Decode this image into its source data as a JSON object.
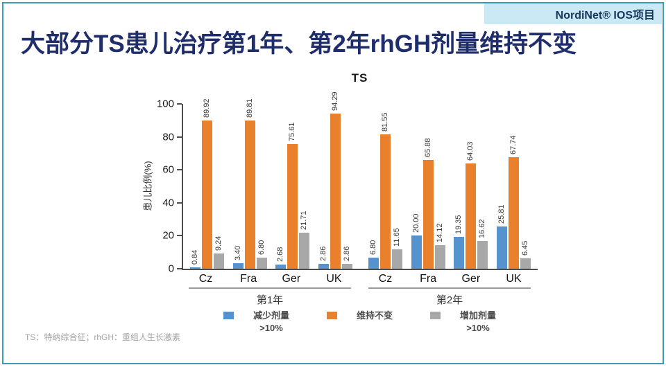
{
  "header": {
    "project": "NordiNet® IOS项目"
  },
  "title": "大部分TS患儿治疗第1年、第2年rhGH剂量维持不变",
  "footnote": "TS：特纳综合征；rhGH：重组人生长激素",
  "colors": {
    "border_teal": "#3d9bb3",
    "header_bg": "#cbe9f5",
    "header_text": "#16365c",
    "title_color": "#1f2e6b"
  },
  "chart_data": {
    "type": "bar",
    "title": "TS",
    "ylabel": "患儿比例(%)",
    "ylim": [
      0,
      100
    ],
    "yticks": [
      0,
      20,
      40,
      60,
      80,
      100
    ],
    "grid": false,
    "legend_position": "bottom",
    "value_decimals": 2,
    "categories": [
      "Cz",
      "Fra",
      "Ger",
      "UK"
    ],
    "series_order": [
      "decrease",
      "maintain",
      "increase"
    ],
    "series_meta": {
      "decrease": {
        "label": "减少剂量",
        "label2": ">10%",
        "color": "#5693ce"
      },
      "maintain": {
        "label": "维持不变",
        "label2": "",
        "color": "#e8802c"
      },
      "increase": {
        "label": "增加剂量",
        "label2": ">10%",
        "color": "#a8a8a8"
      }
    },
    "groups": [
      {
        "label": "第1年",
        "values": {
          "decrease": [
            0.84,
            3.4,
            2.68,
            2.86
          ],
          "maintain": [
            89.92,
            89.81,
            75.61,
            94.29
          ],
          "increase": [
            9.24,
            6.8,
            21.71,
            2.86
          ]
        }
      },
      {
        "label": "第2年",
        "values": {
          "decrease": [
            6.8,
            20.0,
            19.35,
            25.81
          ],
          "maintain": [
            81.55,
            65.88,
            64.03,
            67.74
          ],
          "increase": [
            11.65,
            14.12,
            16.62,
            6.45
          ]
        }
      }
    ]
  }
}
